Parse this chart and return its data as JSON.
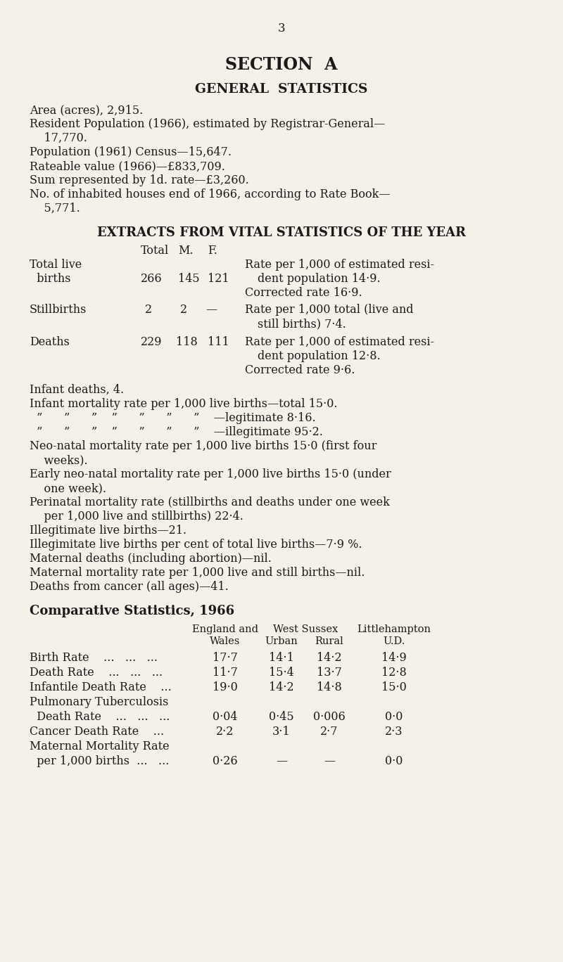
{
  "bg_color": "#f5f0e8",
  "page_number": "3",
  "section_title": "SECTION  A",
  "general_stats_title": "GENERAL  STATISTICS",
  "general_stats_lines": [
    "Area (acres), 2,915.",
    "Resident Population (1966), estimated by Registrar-General—",
    "    17,770.",
    "Population (1961) Census—15,647.",
    "Rateable value (1966)—£833,709.",
    "Sum represented by 1d. rate—£3,260.",
    "No. of inhabited houses end of 1966, according to Rate Book—",
    "    5,771."
  ],
  "extracts_title": "EXTRACTS FROM VITAL STATISTICS OF THE YEAR",
  "paragraph_lines": [
    "Infant deaths, 4.",
    "Infant mortality rate per 1,000 live births—total 15·0.",
    "  ”      ”      ”    ”      ”      ”      ”    —legitimate 8·16.",
    "  ”      ”      ”    ”      ”      ”      ”    —illegitimate 95·2.",
    "Neo-natal mortality rate per 1,000 live births 15·0 (first four",
    "    weeks).",
    "Early neo-natal mortality rate per 1,000 live births 15·0 (under",
    "    one week).",
    "Perinatal mortality rate (stillbirths and deaths under one week",
    "    per 1,000 live and stillbirths) 22·4.",
    "Illegitimate live births—21.",
    "Illegimitate live births per cent of total live births—7·9 %.",
    "Maternal deaths (including abortion)—nil.",
    "Maternal mortality rate per 1,000 live and still births—nil.",
    "Deaths from cancer (all ages)—41."
  ],
  "comp_title": "Comparative Statistics, 1966",
  "comp_rows": [
    {
      "label": "Birth Rate    ...   ...   ...",
      "vals": [
        "17·7",
        "14·1",
        "14·2",
        "14·9"
      ]
    },
    {
      "label": "Death Rate    ...   ...   ...",
      "vals": [
        "11·7",
        "15·4",
        "13·7",
        "12·8"
      ]
    },
    {
      "label": "Infantile Death Rate    ...",
      "vals": [
        "19·0",
        "14·2",
        "14·8",
        "15·0"
      ]
    },
    {
      "label": "Pulmonary Tuberculosis",
      "vals": [
        "",
        "",
        "",
        ""
      ]
    },
    {
      "label": "  Death Rate    ...   ...   ...",
      "vals": [
        "0·04",
        "0·45",
        "0·006",
        "0·0"
      ]
    },
    {
      "label": "Cancer Death Rate    ...",
      "vals": [
        "2·2",
        "3·1",
        "2·7",
        "2·3"
      ]
    },
    {
      "label": "Maternal Mortality Rate",
      "vals": [
        "",
        "",
        "",
        ""
      ]
    },
    {
      "label": "  per 1,000 births  ...   ...",
      "vals": [
        "0·26",
        "—",
        "—",
        "0·0"
      ]
    }
  ],
  "text_color": "#1a1a1a"
}
